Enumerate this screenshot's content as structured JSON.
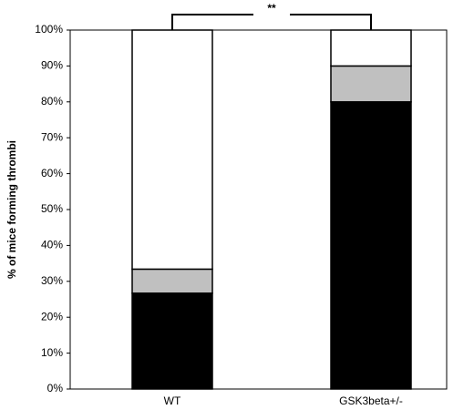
{
  "chart_data": {
    "type": "stacked_bar",
    "y_label": "% of mice forming thrombi",
    "annotation": "**",
    "categories": [
      "WT",
      "GSK3beta+/-"
    ],
    "series": [
      {
        "color": "#000000",
        "values": [
          26.7,
          80
        ]
      },
      {
        "color": "#c0c0c0",
        "values": [
          6.7,
          10
        ]
      },
      {
        "color": "#ffffff",
        "values": [
          66.6,
          10
        ]
      }
    ],
    "ylim": [
      0,
      100
    ],
    "yticks": [
      {
        "value": 0,
        "label": "0%"
      },
      {
        "value": 10,
        "label": "10%"
      },
      {
        "value": 20,
        "label": "20%"
      },
      {
        "value": 30,
        "label": "30%"
      },
      {
        "value": 40,
        "label": "40%"
      },
      {
        "value": 50,
        "label": "50%"
      },
      {
        "value": 60,
        "label": "60%"
      },
      {
        "value": 70,
        "label": "70%"
      },
      {
        "value": 80,
        "label": "80%"
      },
      {
        "value": 90,
        "label": "90%"
      },
      {
        "value": 100,
        "label": "100%"
      }
    ]
  }
}
